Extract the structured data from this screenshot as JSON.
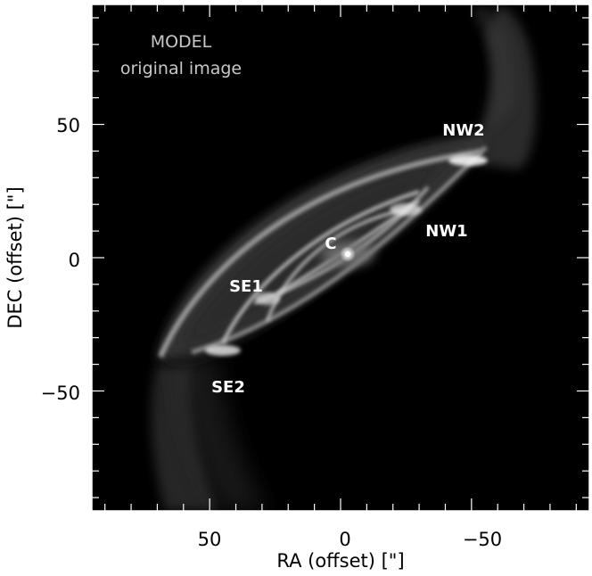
{
  "image": {
    "overlay": {
      "title_line1": "MODEL",
      "title_line2": "original image"
    },
    "labels": {
      "nw2": "NW2",
      "nw1": "NW1",
      "c": "C",
      "se1": "SE1",
      "se2": "SE2"
    }
  },
  "axes": {
    "x": {
      "label": "RA (offset) [\"]",
      "ticks": [
        "50",
        "0",
        "−50"
      ],
      "reversed": true,
      "range": [
        95,
        -95
      ]
    },
    "y": {
      "label": "DEC (offset) [\"]",
      "ticks": [
        "50",
        "0",
        "−50"
      ],
      "range": [
        -95,
        95
      ]
    }
  },
  "colors": {
    "background": "#000000",
    "frame": "#ffffff",
    "emission": "#e0e0e0"
  }
}
